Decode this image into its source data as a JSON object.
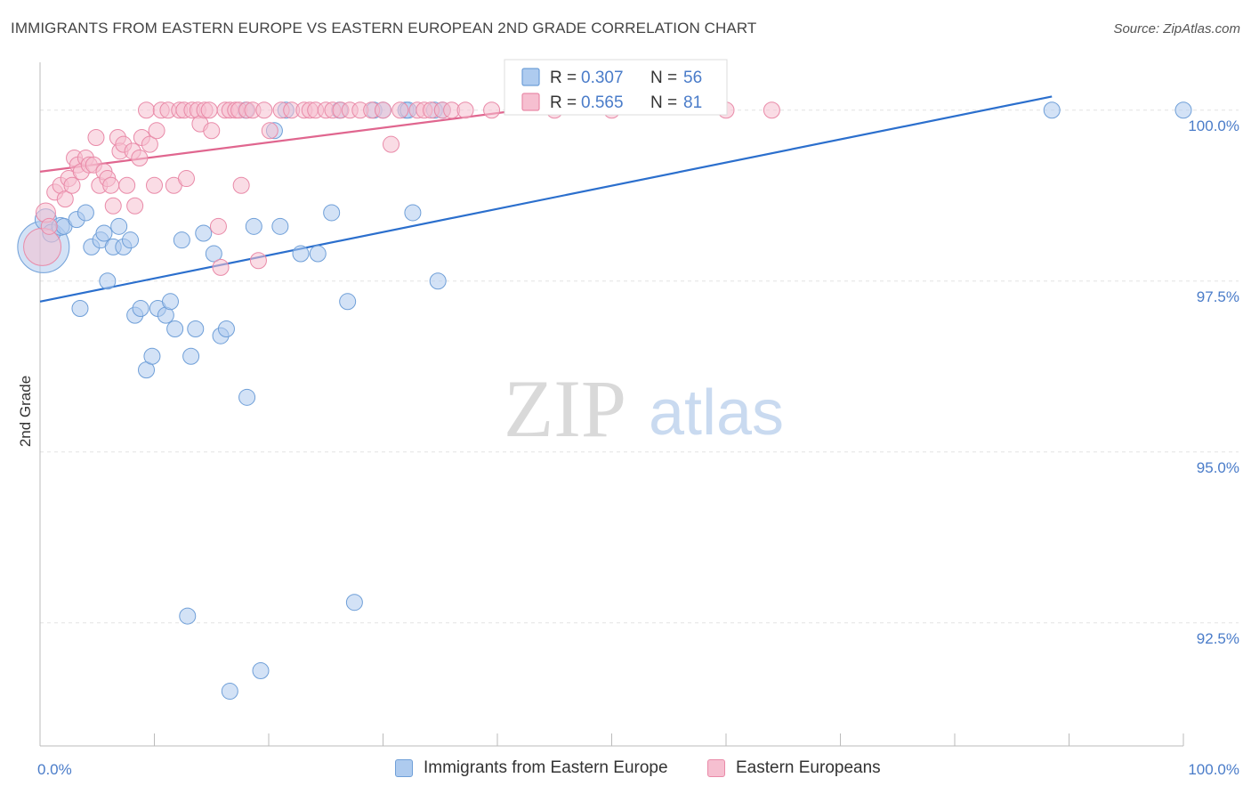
{
  "title": "IMMIGRANTS FROM EASTERN EUROPE VS EASTERN EUROPEAN 2ND GRADE CORRELATION CHART",
  "source": "Source: ZipAtlas.com",
  "watermark": {
    "zip": "ZIP",
    "atlas": "atlas"
  },
  "colors": {
    "blue_fill": "#aecbef",
    "blue_stroke": "#6f9fd8",
    "blue_line": "#2b6fcd",
    "pink_fill": "#f6bfd0",
    "pink_stroke": "#e98aa8",
    "pink_line": "#e0668f",
    "tick_label": "#4a7cc9",
    "grid": "#e4e4e4"
  },
  "chart_data": {
    "type": "scatter",
    "xlabel": "",
    "ylabel": "2nd Grade",
    "xlim": [
      0,
      100
    ],
    "ylim": [
      90.7,
      100.7
    ],
    "x_tick_labels": [
      {
        "value": 0,
        "label": "0.0%"
      },
      {
        "value": 100,
        "label": "100.0%"
      }
    ],
    "y_ticks": [
      {
        "value": 100.0,
        "label": "100.0%"
      },
      {
        "value": 97.5,
        "label": "97.5%"
      },
      {
        "value": 95.0,
        "label": "95.0%"
      },
      {
        "value": 92.5,
        "label": "92.5%"
      }
    ],
    "legend_box": {
      "rows": [
        {
          "r_label": "R = ",
          "r_value": "0.307",
          "n_label": "N = ",
          "n_value": "56"
        },
        {
          "r_label": "R = ",
          "r_value": "0.565",
          "n_label": "N = ",
          "n_value": "81"
        }
      ]
    },
    "series": [
      {
        "name": "Immigrants from Eastern Europe",
        "color": "blue",
        "trend": {
          "x": [
            0,
            88.5
          ],
          "y": [
            97.2,
            100.2
          ]
        },
        "points": [
          [
            0.3,
            98.0,
            30
          ],
          [
            0.5,
            98.4,
            13
          ],
          [
            1.0,
            98.2,
            11
          ],
          [
            1.8,
            98.3,
            11
          ],
          [
            2.1,
            98.3,
            10
          ],
          [
            3.2,
            98.4,
            10
          ],
          [
            4.0,
            98.5,
            10
          ],
          [
            3.5,
            97.1,
            10
          ],
          [
            4.5,
            98.0,
            10
          ],
          [
            5.3,
            98.1,
            10
          ],
          [
            5.6,
            98.2,
            10
          ],
          [
            6.4,
            98.0,
            10
          ],
          [
            5.9,
            97.5,
            10
          ],
          [
            6.9,
            98.3,
            10
          ],
          [
            7.3,
            98.0,
            10
          ],
          [
            7.9,
            98.1,
            10
          ],
          [
            8.3,
            97.0,
            10
          ],
          [
            8.8,
            97.1,
            10
          ],
          [
            9.3,
            96.2,
            10
          ],
          [
            9.8,
            96.4,
            10
          ],
          [
            10.3,
            97.1,
            10
          ],
          [
            11.0,
            97.0,
            10
          ],
          [
            11.4,
            97.2,
            10
          ],
          [
            11.8,
            96.8,
            10
          ],
          [
            12.4,
            98.1,
            10
          ],
          [
            12.9,
            92.6,
            10
          ],
          [
            13.2,
            96.4,
            10
          ],
          [
            13.6,
            96.8,
            10
          ],
          [
            14.3,
            98.2,
            10
          ],
          [
            15.2,
            97.9,
            10
          ],
          [
            15.8,
            96.7,
            10
          ],
          [
            16.3,
            96.8,
            10
          ],
          [
            16.6,
            91.5,
            10
          ],
          [
            18.0,
            100.0,
            10
          ],
          [
            18.1,
            95.8,
            10
          ],
          [
            18.7,
            98.3,
            10
          ],
          [
            19.3,
            91.8,
            10
          ],
          [
            20.5,
            99.7,
            10
          ],
          [
            21.0,
            98.3,
            10
          ],
          [
            21.5,
            100.0,
            10
          ],
          [
            22.8,
            97.9,
            10
          ],
          [
            24.3,
            97.9,
            10
          ],
          [
            25.5,
            98.5,
            10
          ],
          [
            26.2,
            100.0,
            10
          ],
          [
            26.9,
            97.2,
            10
          ],
          [
            27.5,
            92.8,
            10
          ],
          [
            29.2,
            100.0,
            10
          ],
          [
            30.0,
            100.0,
            10
          ],
          [
            32.0,
            100.0,
            10
          ],
          [
            32.2,
            100.0,
            10
          ],
          [
            32.6,
            98.5,
            10
          ],
          [
            34.8,
            97.5,
            10
          ],
          [
            34.5,
            100.0,
            10
          ],
          [
            35.2,
            100.0,
            10
          ],
          [
            88.5,
            100.0,
            10
          ],
          [
            100.0,
            100.0,
            10
          ]
        ]
      },
      {
        "name": "Eastern Europeans",
        "color": "pink",
        "trend": {
          "x": [
            0,
            42
          ],
          "y": [
            99.1,
            100.0
          ]
        },
        "points": [
          [
            0.2,
            98.0,
            22
          ],
          [
            0.5,
            98.5,
            12
          ],
          [
            0.8,
            98.3,
            10
          ],
          [
            1.3,
            98.8,
            10
          ],
          [
            1.8,
            98.9,
            10
          ],
          [
            2.2,
            98.7,
            10
          ],
          [
            2.5,
            99.0,
            10
          ],
          [
            2.8,
            98.9,
            10
          ],
          [
            3.0,
            99.3,
            10
          ],
          [
            3.3,
            99.2,
            10
          ],
          [
            3.6,
            99.1,
            10
          ],
          [
            4.0,
            99.3,
            10
          ],
          [
            4.3,
            99.2,
            10
          ],
          [
            4.7,
            99.2,
            10
          ],
          [
            4.9,
            99.6,
            10
          ],
          [
            5.2,
            98.9,
            10
          ],
          [
            5.6,
            99.1,
            10
          ],
          [
            5.9,
            99.0,
            10
          ],
          [
            6.2,
            98.9,
            10
          ],
          [
            6.4,
            98.6,
            10
          ],
          [
            6.8,
            99.6,
            10
          ],
          [
            7.0,
            99.4,
            10
          ],
          [
            7.3,
            99.5,
            10
          ],
          [
            7.6,
            98.9,
            10
          ],
          [
            8.1,
            99.4,
            10
          ],
          [
            8.3,
            98.6,
            10
          ],
          [
            8.7,
            99.3,
            10
          ],
          [
            8.9,
            99.6,
            10
          ],
          [
            9.3,
            100.0,
            10
          ],
          [
            9.6,
            99.5,
            10
          ],
          [
            10.0,
            98.9,
            10
          ],
          [
            10.2,
            99.7,
            10
          ],
          [
            10.6,
            100.0,
            10
          ],
          [
            11.2,
            100.0,
            10
          ],
          [
            11.7,
            98.9,
            10
          ],
          [
            12.2,
            100.0,
            10
          ],
          [
            12.6,
            100.0,
            10
          ],
          [
            12.8,
            99.0,
            10
          ],
          [
            13.3,
            100.0,
            10
          ],
          [
            13.8,
            100.0,
            10
          ],
          [
            14.0,
            99.8,
            10
          ],
          [
            14.4,
            100.0,
            10
          ],
          [
            14.8,
            100.0,
            10
          ],
          [
            15.0,
            99.7,
            10
          ],
          [
            15.6,
            98.3,
            10
          ],
          [
            15.8,
            97.7,
            10
          ],
          [
            16.2,
            100.0,
            10
          ],
          [
            16.6,
            100.0,
            10
          ],
          [
            17.1,
            100.0,
            10
          ],
          [
            17.4,
            100.0,
            10
          ],
          [
            17.6,
            98.9,
            10
          ],
          [
            18.1,
            100.0,
            10
          ],
          [
            18.6,
            100.0,
            10
          ],
          [
            19.1,
            97.8,
            10
          ],
          [
            19.6,
            100.0,
            10
          ],
          [
            20.1,
            99.7,
            10
          ],
          [
            21.1,
            100.0,
            10
          ],
          [
            22.0,
            100.0,
            10
          ],
          [
            23.1,
            100.0,
            10
          ],
          [
            23.6,
            100.0,
            10
          ],
          [
            24.1,
            100.0,
            10
          ],
          [
            25.0,
            100.0,
            10
          ],
          [
            25.6,
            100.0,
            10
          ],
          [
            26.3,
            100.0,
            10
          ],
          [
            27.1,
            100.0,
            10
          ],
          [
            28.0,
            100.0,
            10
          ],
          [
            29.0,
            100.0,
            10
          ],
          [
            30.0,
            100.0,
            10
          ],
          [
            30.7,
            99.5,
            10
          ],
          [
            31.5,
            100.0,
            10
          ],
          [
            33.0,
            100.0,
            10
          ],
          [
            33.6,
            100.0,
            10
          ],
          [
            34.2,
            100.0,
            10
          ],
          [
            35.2,
            100.0,
            10
          ],
          [
            36.0,
            100.0,
            10
          ],
          [
            37.2,
            100.0,
            10
          ],
          [
            39.5,
            100.0,
            10
          ],
          [
            45.0,
            100.0,
            10
          ],
          [
            50.0,
            100.0,
            10
          ],
          [
            60.0,
            100.0,
            10
          ],
          [
            64.0,
            100.0,
            10
          ]
        ]
      }
    ]
  }
}
